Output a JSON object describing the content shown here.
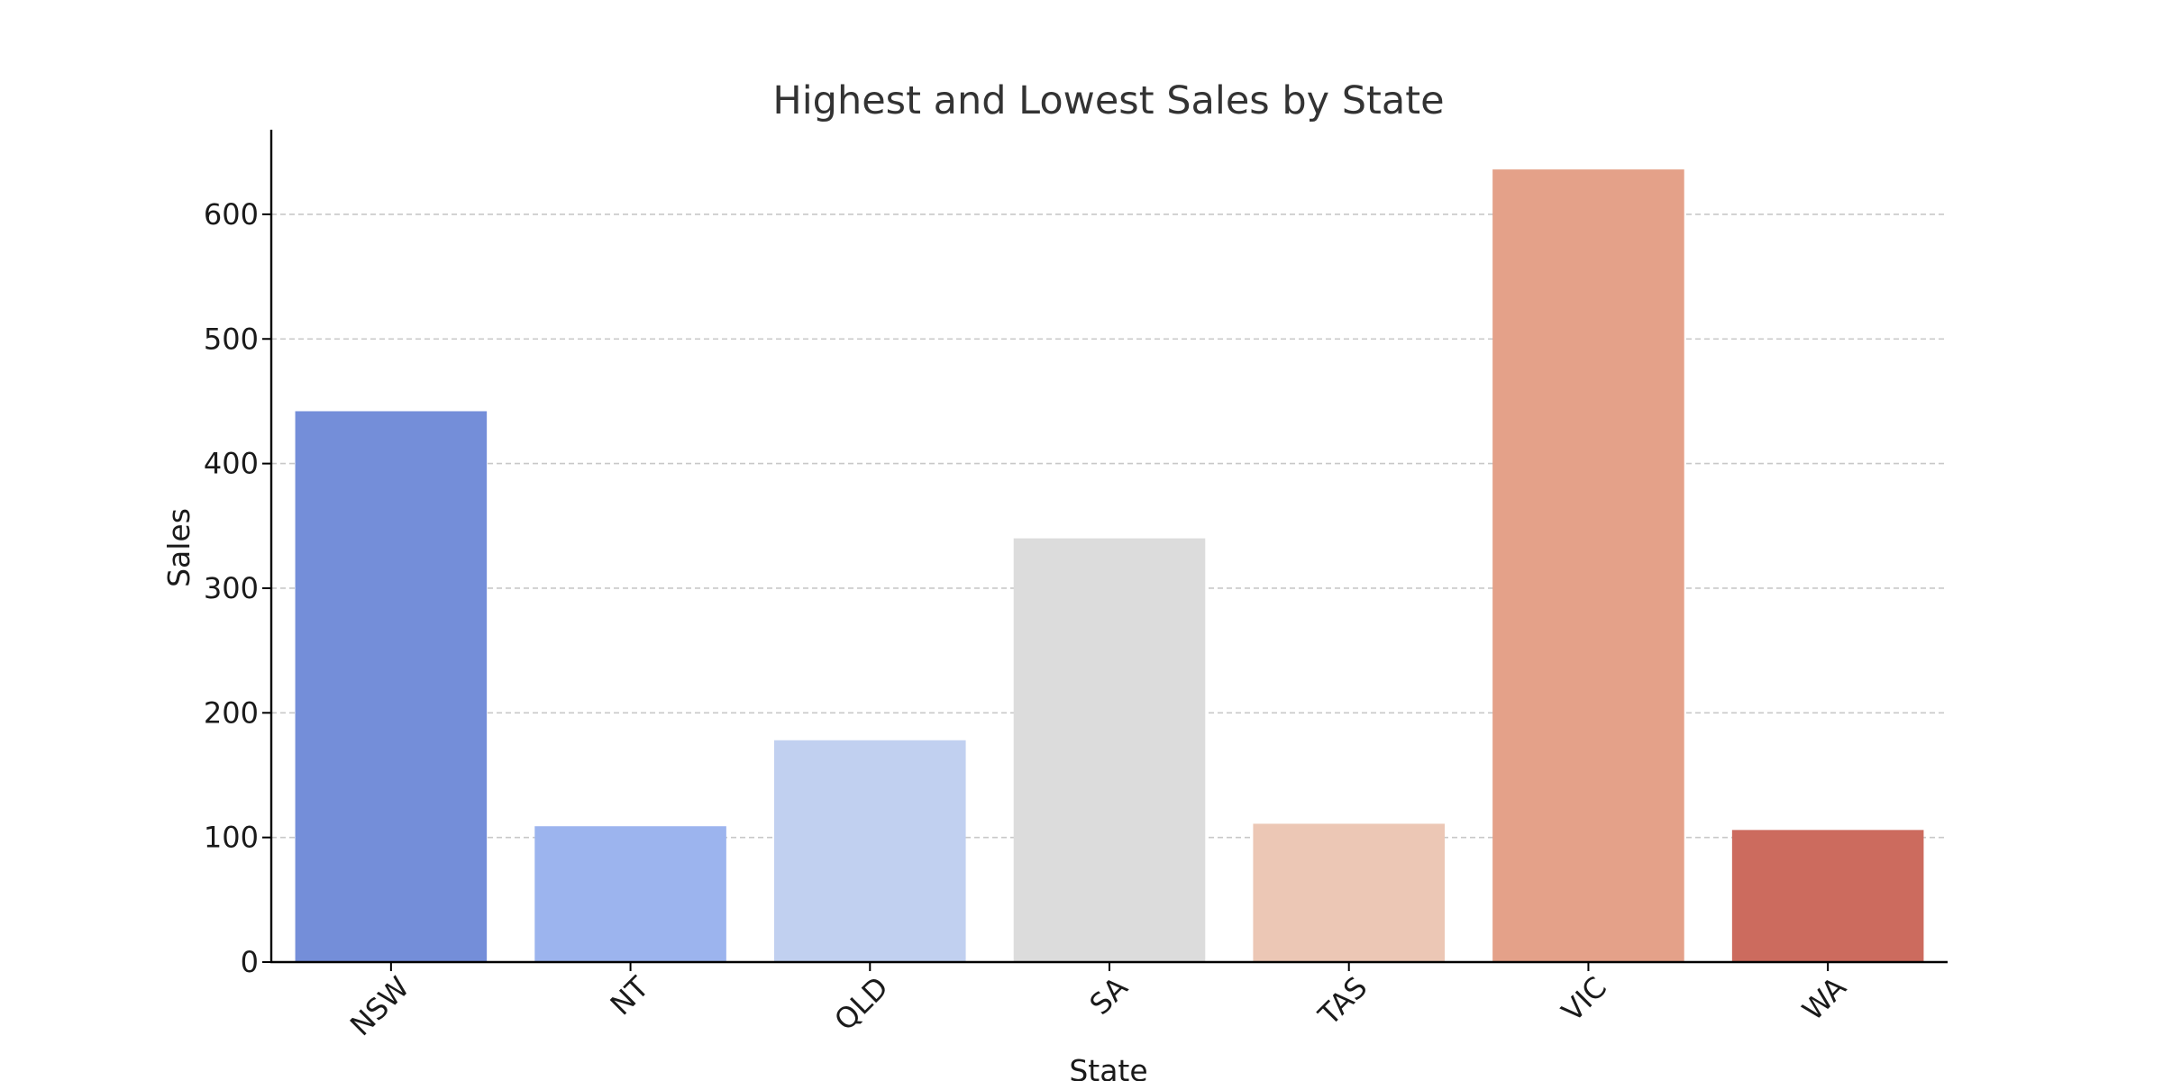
{
  "chart_data": {
    "type": "bar",
    "title": "Highest and Lowest Sales by State",
    "xlabel": "State",
    "ylabel": "Sales",
    "categories": [
      "NSW",
      "NT",
      "QLD",
      "SA",
      "TAS",
      "VIC",
      "WA"
    ],
    "values": [
      442,
      109,
      178,
      340,
      111,
      636,
      106
    ],
    "colors": [
      "#748ed9",
      "#9cb4ee",
      "#c1d0f0",
      "#dcdcdc",
      "#ecc7b5",
      "#e4a189",
      "#cc6b5e"
    ],
    "ylim": [
      0,
      670
    ],
    "yticks": [
      0,
      100,
      200,
      300,
      400,
      500,
      600
    ],
    "grid": "horizontal-dashed",
    "legend": "none"
  }
}
